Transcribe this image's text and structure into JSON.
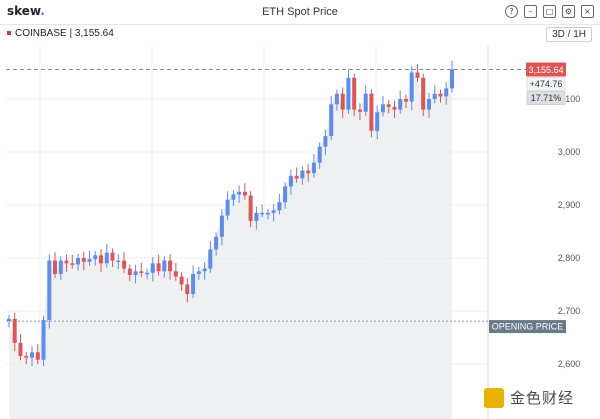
{
  "header": {
    "logo": "skew",
    "logo_dot": ".",
    "title": "ETH Spot Price",
    "icons": [
      "help-icon",
      "minimize-icon",
      "maximize-icon",
      "settings-icon",
      "close-icon"
    ]
  },
  "exchange_label": "COINBASE | 3,155.64",
  "timeframe_button": "3D / 1H",
  "watermark": "金色财经",
  "colors": {
    "up": "#5b8def",
    "down": "#e05454",
    "price_tag": "#e05454",
    "opening_tag": "#6b7a87",
    "area": "#e9ebee"
  },
  "chart_data": {
    "type": "candlestick",
    "y_ticks": [
      "3,100",
      "3,000",
      "2,900",
      "2,800",
      "2,700",
      "2,600"
    ],
    "y_tick_values": [
      3100,
      3000,
      2900,
      2800,
      2700,
      2600
    ],
    "ylim": [
      2560,
      3180
    ],
    "last_price": 3155.64,
    "last_price_label": "3,155.64",
    "change_label": "+474.76",
    "change_pct_label": "17.71%",
    "opening_price": 2681,
    "opening_price_label": "OPENING PRICE",
    "closes": [
      2685,
      2640,
      2615,
      2612,
      2622,
      2608,
      2683,
      2795,
      2770,
      2795,
      2790,
      2788,
      2800,
      2793,
      2798,
      2805,
      2790,
      2810,
      2795,
      2795,
      2780,
      2768,
      2775,
      2772,
      2772,
      2790,
      2775,
      2795,
      2775,
      2765,
      2750,
      2732,
      2770,
      2775,
      2780,
      2816,
      2840,
      2880,
      2910,
      2920,
      2925,
      2918,
      2870,
      2885,
      2885,
      2885,
      2890,
      2905,
      2935,
      2955,
      2950,
      2965,
      2960,
      2980,
      3010,
      3030,
      3090,
      3110,
      3080,
      3140,
      3080,
      3076,
      3110,
      3040,
      3075,
      3090,
      3085,
      3080,
      3100,
      3095,
      3150,
      3140,
      3080,
      3100,
      3110,
      3105,
      3120,
      3156
    ]
  }
}
